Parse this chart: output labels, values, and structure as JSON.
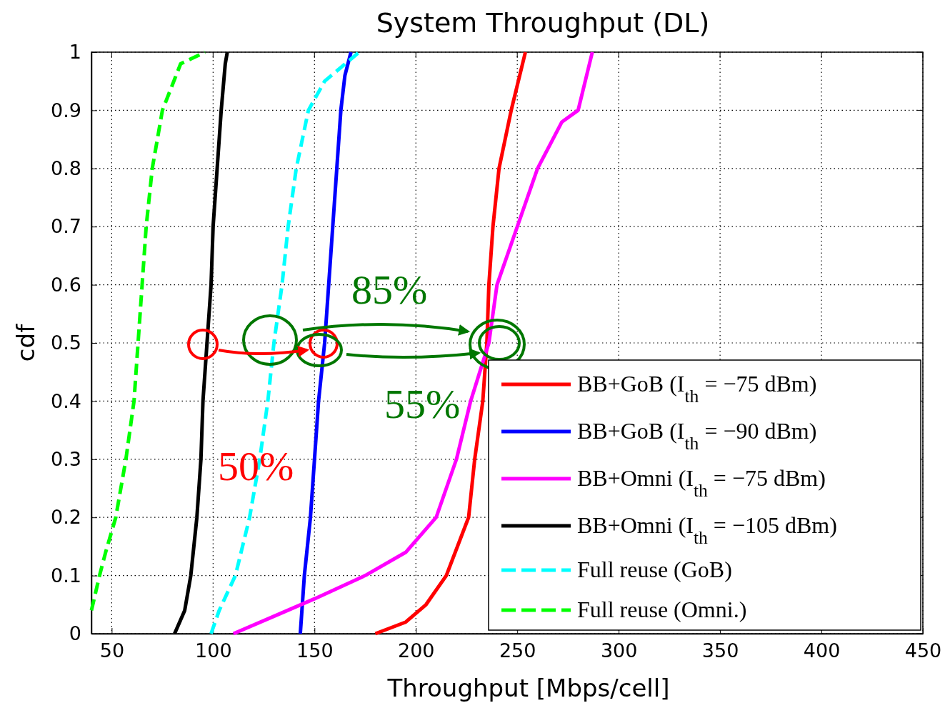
{
  "chart_data": {
    "type": "line",
    "title": "System Throughput (DL)",
    "xlabel": "Throughput [Mbps/cell]",
    "ylabel": "cdf",
    "xlim": [
      40,
      450
    ],
    "xticks": [
      50,
      100,
      150,
      200,
      250,
      300,
      350,
      400,
      450
    ],
    "ylim": [
      0,
      1
    ],
    "yticks": [
      0,
      0.1,
      0.2,
      0.3,
      0.4,
      0.5,
      0.6,
      0.7,
      0.8,
      0.9,
      1
    ],
    "grid": true,
    "legend": "bottom right",
    "marker": "none",
    "series": [
      {
        "name": "BB+GoB (I$_{th}$ = −75 dBm)",
        "color": "#ff0000",
        "line_style": "solid",
        "x": [
          180,
          195,
          205,
          215,
          226,
          229,
          233,
          235,
          236,
          238,
          241,
          247,
          254
        ],
        "values": [
          0,
          0.02,
          0.05,
          0.1,
          0.2,
          0.3,
          0.4,
          0.5,
          0.6,
          0.7,
          0.8,
          0.9,
          1
        ]
      },
      {
        "name": "BB+GoB (I$_{th}$ = −90 dBm)",
        "color": "#0000ff",
        "line_style": "solid",
        "x": [
          143,
          145,
          148,
          150,
          152,
          155,
          157,
          159,
          161,
          163,
          165,
          168
        ],
        "values": [
          0,
          0.1,
          0.2,
          0.3,
          0.4,
          0.5,
          0.6,
          0.7,
          0.8,
          0.9,
          0.96,
          1
        ]
      },
      {
        "name": "BB+Omni (I$_{th}$ = −75 dBm)",
        "color": "#ff00ff",
        "line_style": "solid",
        "x": [
          110,
          130,
          150,
          175,
          195,
          210,
          220,
          227,
          236,
          240,
          250,
          260,
          272,
          280,
          287
        ],
        "values": [
          0,
          0.03,
          0.06,
          0.1,
          0.14,
          0.2,
          0.3,
          0.4,
          0.5,
          0.6,
          0.7,
          0.8,
          0.88,
          0.9,
          1
        ]
      },
      {
        "name": "BB+Omni (I$_{th}$ = −105 dBm)",
        "color": "#000000",
        "line_style": "solid",
        "x": [
          81,
          86,
          89,
          92,
          94,
          95,
          97,
          99,
          100,
          102,
          104,
          106,
          107
        ],
        "values": [
          0,
          0.04,
          0.1,
          0.2,
          0.3,
          0.4,
          0.5,
          0.6,
          0.7,
          0.8,
          0.9,
          0.98,
          1
        ]
      },
      {
        "name": "Full reuse (GoB)",
        "color": "#00ffff",
        "line_style": "dashed",
        "x": [
          99,
          103,
          111,
          118,
          123,
          127,
          130,
          134,
          137,
          141,
          147,
          155,
          172
        ],
        "values": [
          0,
          0.04,
          0.1,
          0.2,
          0.3,
          0.4,
          0.5,
          0.6,
          0.7,
          0.8,
          0.9,
          0.95,
          1
        ]
      },
      {
        "name": "Full reuse (Omni.)",
        "color": "#00ff00",
        "line_style": "dashed",
        "x": [
          40,
          44,
          47,
          52,
          57,
          61,
          63,
          65,
          67,
          70,
          75,
          84,
          96
        ],
        "values": [
          0.04,
          0.1,
          0.14,
          0.2,
          0.3,
          0.4,
          0.5,
          0.6,
          0.7,
          0.8,
          0.9,
          0.98,
          1
        ]
      }
    ],
    "annotations": [
      "85%",
      "55%",
      "50%"
    ]
  }
}
